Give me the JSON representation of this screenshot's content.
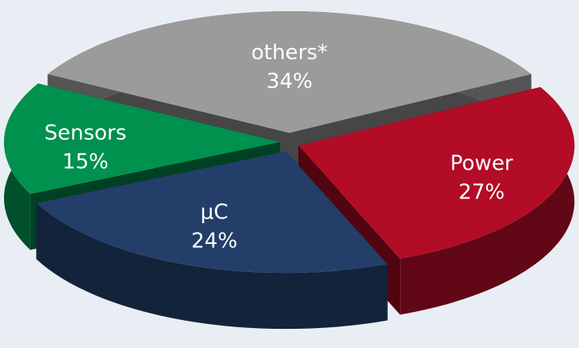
{
  "chart_data": {
    "type": "pie3d",
    "categories": [
      "others*",
      "Power",
      "μC",
      "Sensors"
    ],
    "values": [
      34,
      27,
      24,
      15
    ],
    "value_labels": [
      "34%",
      "27%",
      "24%",
      "15%"
    ],
    "colors": [
      "#9b9b9b",
      "#b20c26",
      "#233f69",
      "#00914f"
    ]
  }
}
